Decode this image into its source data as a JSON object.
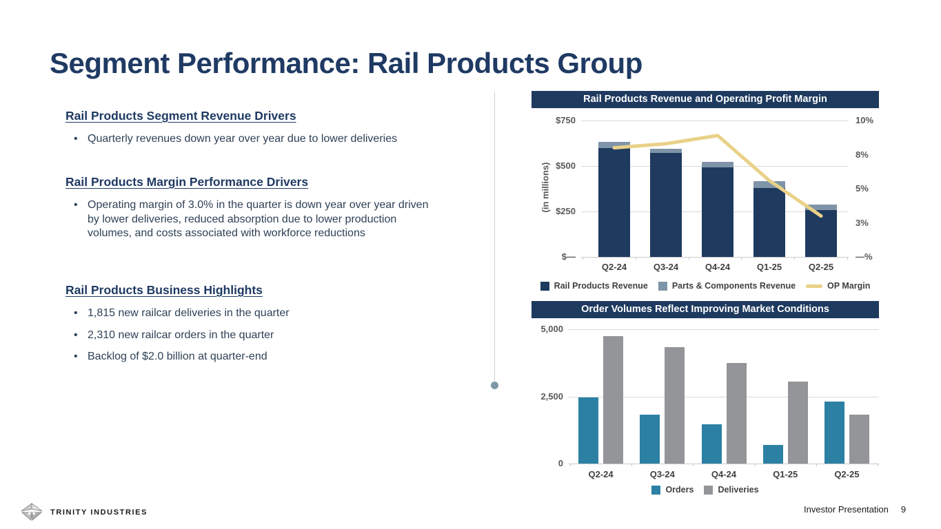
{
  "slide": {
    "title": "Segment Performance: Rail Products Group"
  },
  "sections": [
    {
      "heading": "Rail Products Segment Revenue Drivers",
      "bullets": [
        "Quarterly revenues down year over year due to lower deliveries"
      ]
    },
    {
      "heading": "Rail Products Margin Performance Drivers",
      "bullets": [
        "Operating margin of 3.0% in the quarter is down year over year driven by lower deliveries, reduced absorption due to lower production volumes, and costs associated with workforce reductions"
      ]
    },
    {
      "heading": "Rail Products Business Highlights",
      "bullets": [
        "1,815 new railcar deliveries in the quarter",
        "2,310 new railcar orders in the quarter",
        "Backlog of $2.0 billion at quarter-end"
      ]
    }
  ],
  "chart_data": [
    {
      "type": "bar+line",
      "title": "Rail Products Revenue and Operating Profit Margin",
      "categories": [
        "Q2-24",
        "Q3-24",
        "Q4-24",
        "Q1-25",
        "Q2-25"
      ],
      "bar_series": [
        {
          "name": "Rail Products Revenue",
          "stacked": true,
          "values": [
            600,
            573,
            492,
            380,
            258
          ],
          "color": "#1e3a5f"
        },
        {
          "name": "Parts & Components Revenue",
          "stacked": true,
          "values": [
            33,
            22,
            31,
            36,
            29
          ],
          "color": "#7f94a8"
        }
      ],
      "line_series": {
        "name": "OP Margin",
        "values": [
          8.0,
          8.3,
          8.9,
          5.6,
          3.0
        ],
        "color": "#e9d188",
        "axis": "right"
      },
      "left_axis": {
        "title": "(in millions)",
        "tick_labels": [
          "$750",
          "$500",
          "$250",
          "$—"
        ],
        "tick_values": [
          750,
          500,
          250,
          0
        ],
        "min": 0,
        "max": 750
      },
      "right_axis": {
        "tick_labels": [
          "10%",
          "8%",
          "5%",
          "3%",
          "—%"
        ],
        "min": 0,
        "max": 10
      },
      "grid": true,
      "legend_position": "bottom"
    },
    {
      "type": "bar",
      "title": "Order Volumes Reflect Improving Market Conditions",
      "categories": [
        "Q2-24",
        "Q3-24",
        "Q4-24",
        "Q1-25",
        "Q2-25"
      ],
      "series": [
        {
          "name": "Orders",
          "values": [
            2450,
            1810,
            1455,
            695,
            2310
          ],
          "color": "#2b80a4"
        },
        {
          "name": "Deliveries",
          "values": [
            4755,
            4325,
            3745,
            3060,
            1815
          ],
          "color": "#939598"
        }
      ],
      "y_axis": {
        "tick_labels": [
          "5,000",
          "2,500",
          "0"
        ],
        "tick_values": [
          5000,
          2500,
          0
        ],
        "min": 0,
        "max": 5000
      },
      "grid": true,
      "legend_position": "bottom"
    }
  ],
  "footer": {
    "brand": "TRINITY INDUSTRIES",
    "label": "Investor Presentation",
    "page": "9"
  },
  "colors": {
    "title_navy": "#1f3a63",
    "banner_navy": "#1e3a5f",
    "rail_revenue_bar": "#1e3a5f",
    "parts_revenue_bar": "#7f94a8",
    "op_margin_line": "#e9d188",
    "orders_bar": "#2b80a4",
    "deliveries_bar": "#939598",
    "gridline": "#d9d9d9",
    "divider_dot": "#7d98a6"
  }
}
